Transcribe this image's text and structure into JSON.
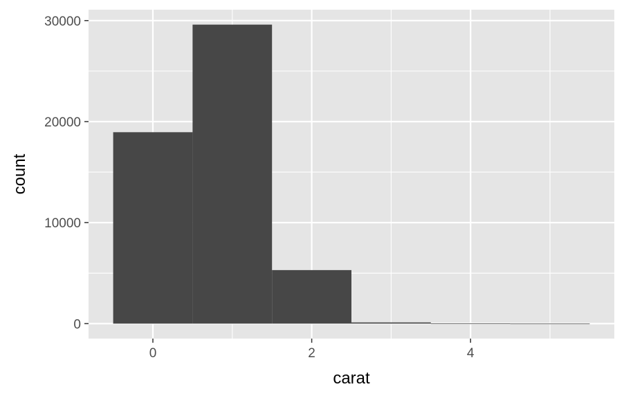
{
  "chart_data": {
    "type": "bar",
    "subtype": "histogram",
    "title": "",
    "xlabel": "carat",
    "ylabel": "count",
    "binwidth": 1,
    "bins": [
      {
        "x0": -0.5,
        "x1": 0.5,
        "count": 18950
      },
      {
        "x0": 0.5,
        "x1": 1.5,
        "count": 29600
      },
      {
        "x0": 1.5,
        "x1": 2.5,
        "count": 5300
      },
      {
        "x0": 2.5,
        "x1": 3.5,
        "count": 120
      },
      {
        "x0": 3.5,
        "x1": 4.5,
        "count": 10
      },
      {
        "x0": 4.5,
        "x1": 5.5,
        "count": 1
      }
    ],
    "xlim": [
      -0.81,
      5.81
    ],
    "ylim": [
      -1480,
      31080
    ],
    "xticks": [
      0,
      2,
      4
    ],
    "xtick_labels": [
      "0",
      "2",
      "4"
    ],
    "xminor": [
      1,
      3,
      5
    ],
    "yticks": [
      0,
      10000,
      20000,
      30000
    ],
    "ytick_labels": [
      "0",
      "10000",
      "20000",
      "30000"
    ],
    "yminor": [
      5000,
      15000,
      25000
    ],
    "grid": true,
    "legend": "none",
    "colors": {
      "panel": "#e5e5e5",
      "grid": "#ffffff",
      "bar": "#474747",
      "tick_text": "#4d4d4d",
      "tick_mark": "#333333",
      "axis_title": "#000000"
    }
  }
}
